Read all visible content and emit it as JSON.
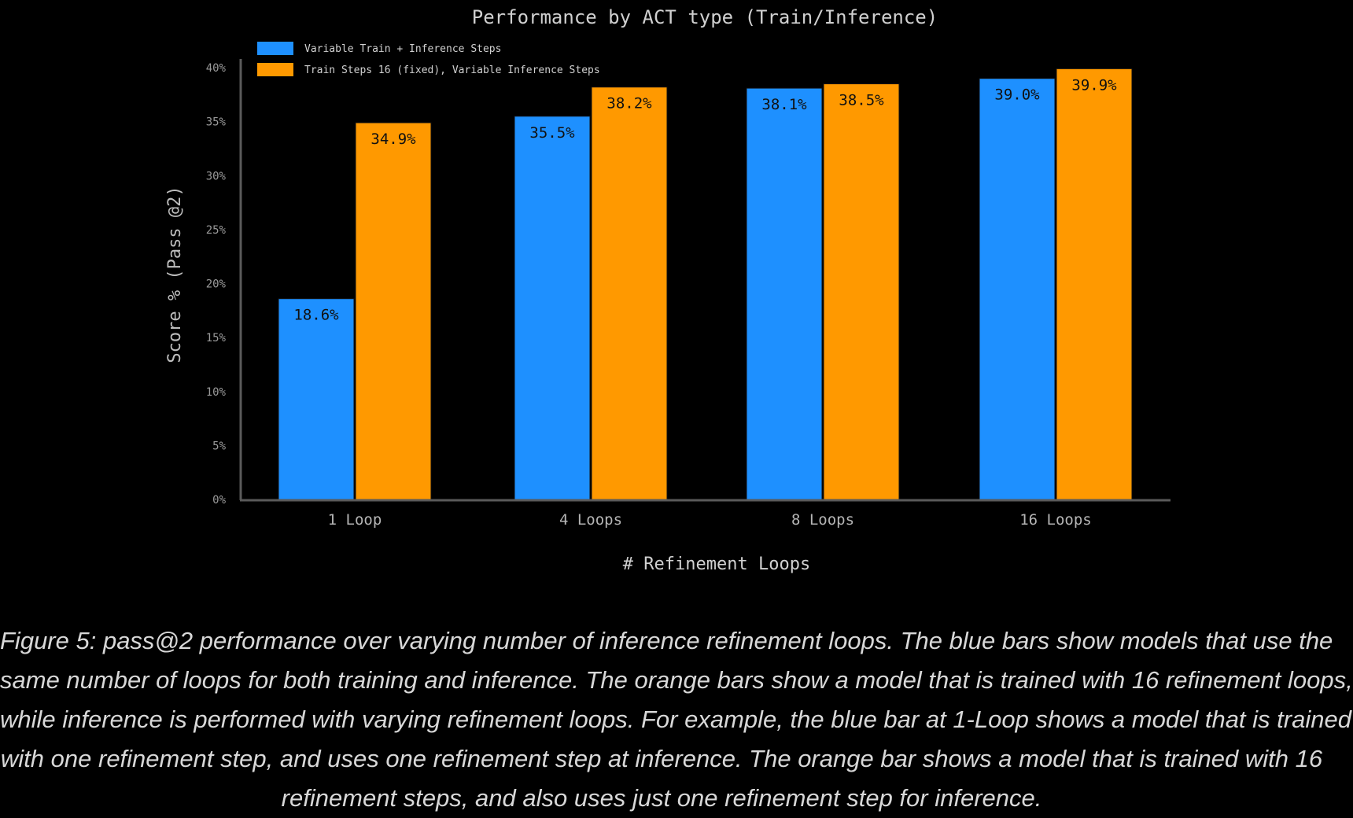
{
  "chart_data": {
    "type": "bar",
    "title": "Performance by ACT type (Train/Inference)",
    "xlabel": "# Refinement Loops",
    "ylabel": "Score % (Pass @2)",
    "categories": [
      "1 Loop",
      "4 Loops",
      "8 Loops",
      "16 Loops"
    ],
    "ylim": [
      0,
      40
    ],
    "yticks": [
      "0%",
      "5%",
      "10%",
      "15%",
      "20%",
      "25%",
      "30%",
      "35%",
      "40%"
    ],
    "grid": false,
    "legend_position": "top-left",
    "series": [
      {
        "name": "Variable Train + Inference Steps",
        "color": "#1e90ff",
        "values": [
          18.6,
          35.5,
          38.1,
          39.0
        ],
        "labels": [
          "18.6%",
          "35.5%",
          "38.1%",
          "39.0%"
        ]
      },
      {
        "name": "Train Steps 16 (fixed), Variable Inference Steps",
        "color": "#ff9900",
        "values": [
          34.9,
          38.2,
          38.5,
          39.9
        ],
        "labels": [
          "34.9%",
          "38.2%",
          "38.5%",
          "39.9%"
        ]
      }
    ]
  },
  "caption": {
    "lines": [
      "Figure 5: pass@2 performance over varying number of inference refinement loops. The blue bars show models that use the",
      "same number of loops for both training and inference. The orange bars show a model that is trained with 16 refinement loops,",
      "while inference is performed with varying refinement loops. For example, the blue bar at 1-Loop shows a model that is trained",
      "with one refinement step, and uses one refinement step at inference. The orange bar shows a model that is trained with 16",
      "refinement steps, and also uses just one refinement step for inference."
    ]
  }
}
